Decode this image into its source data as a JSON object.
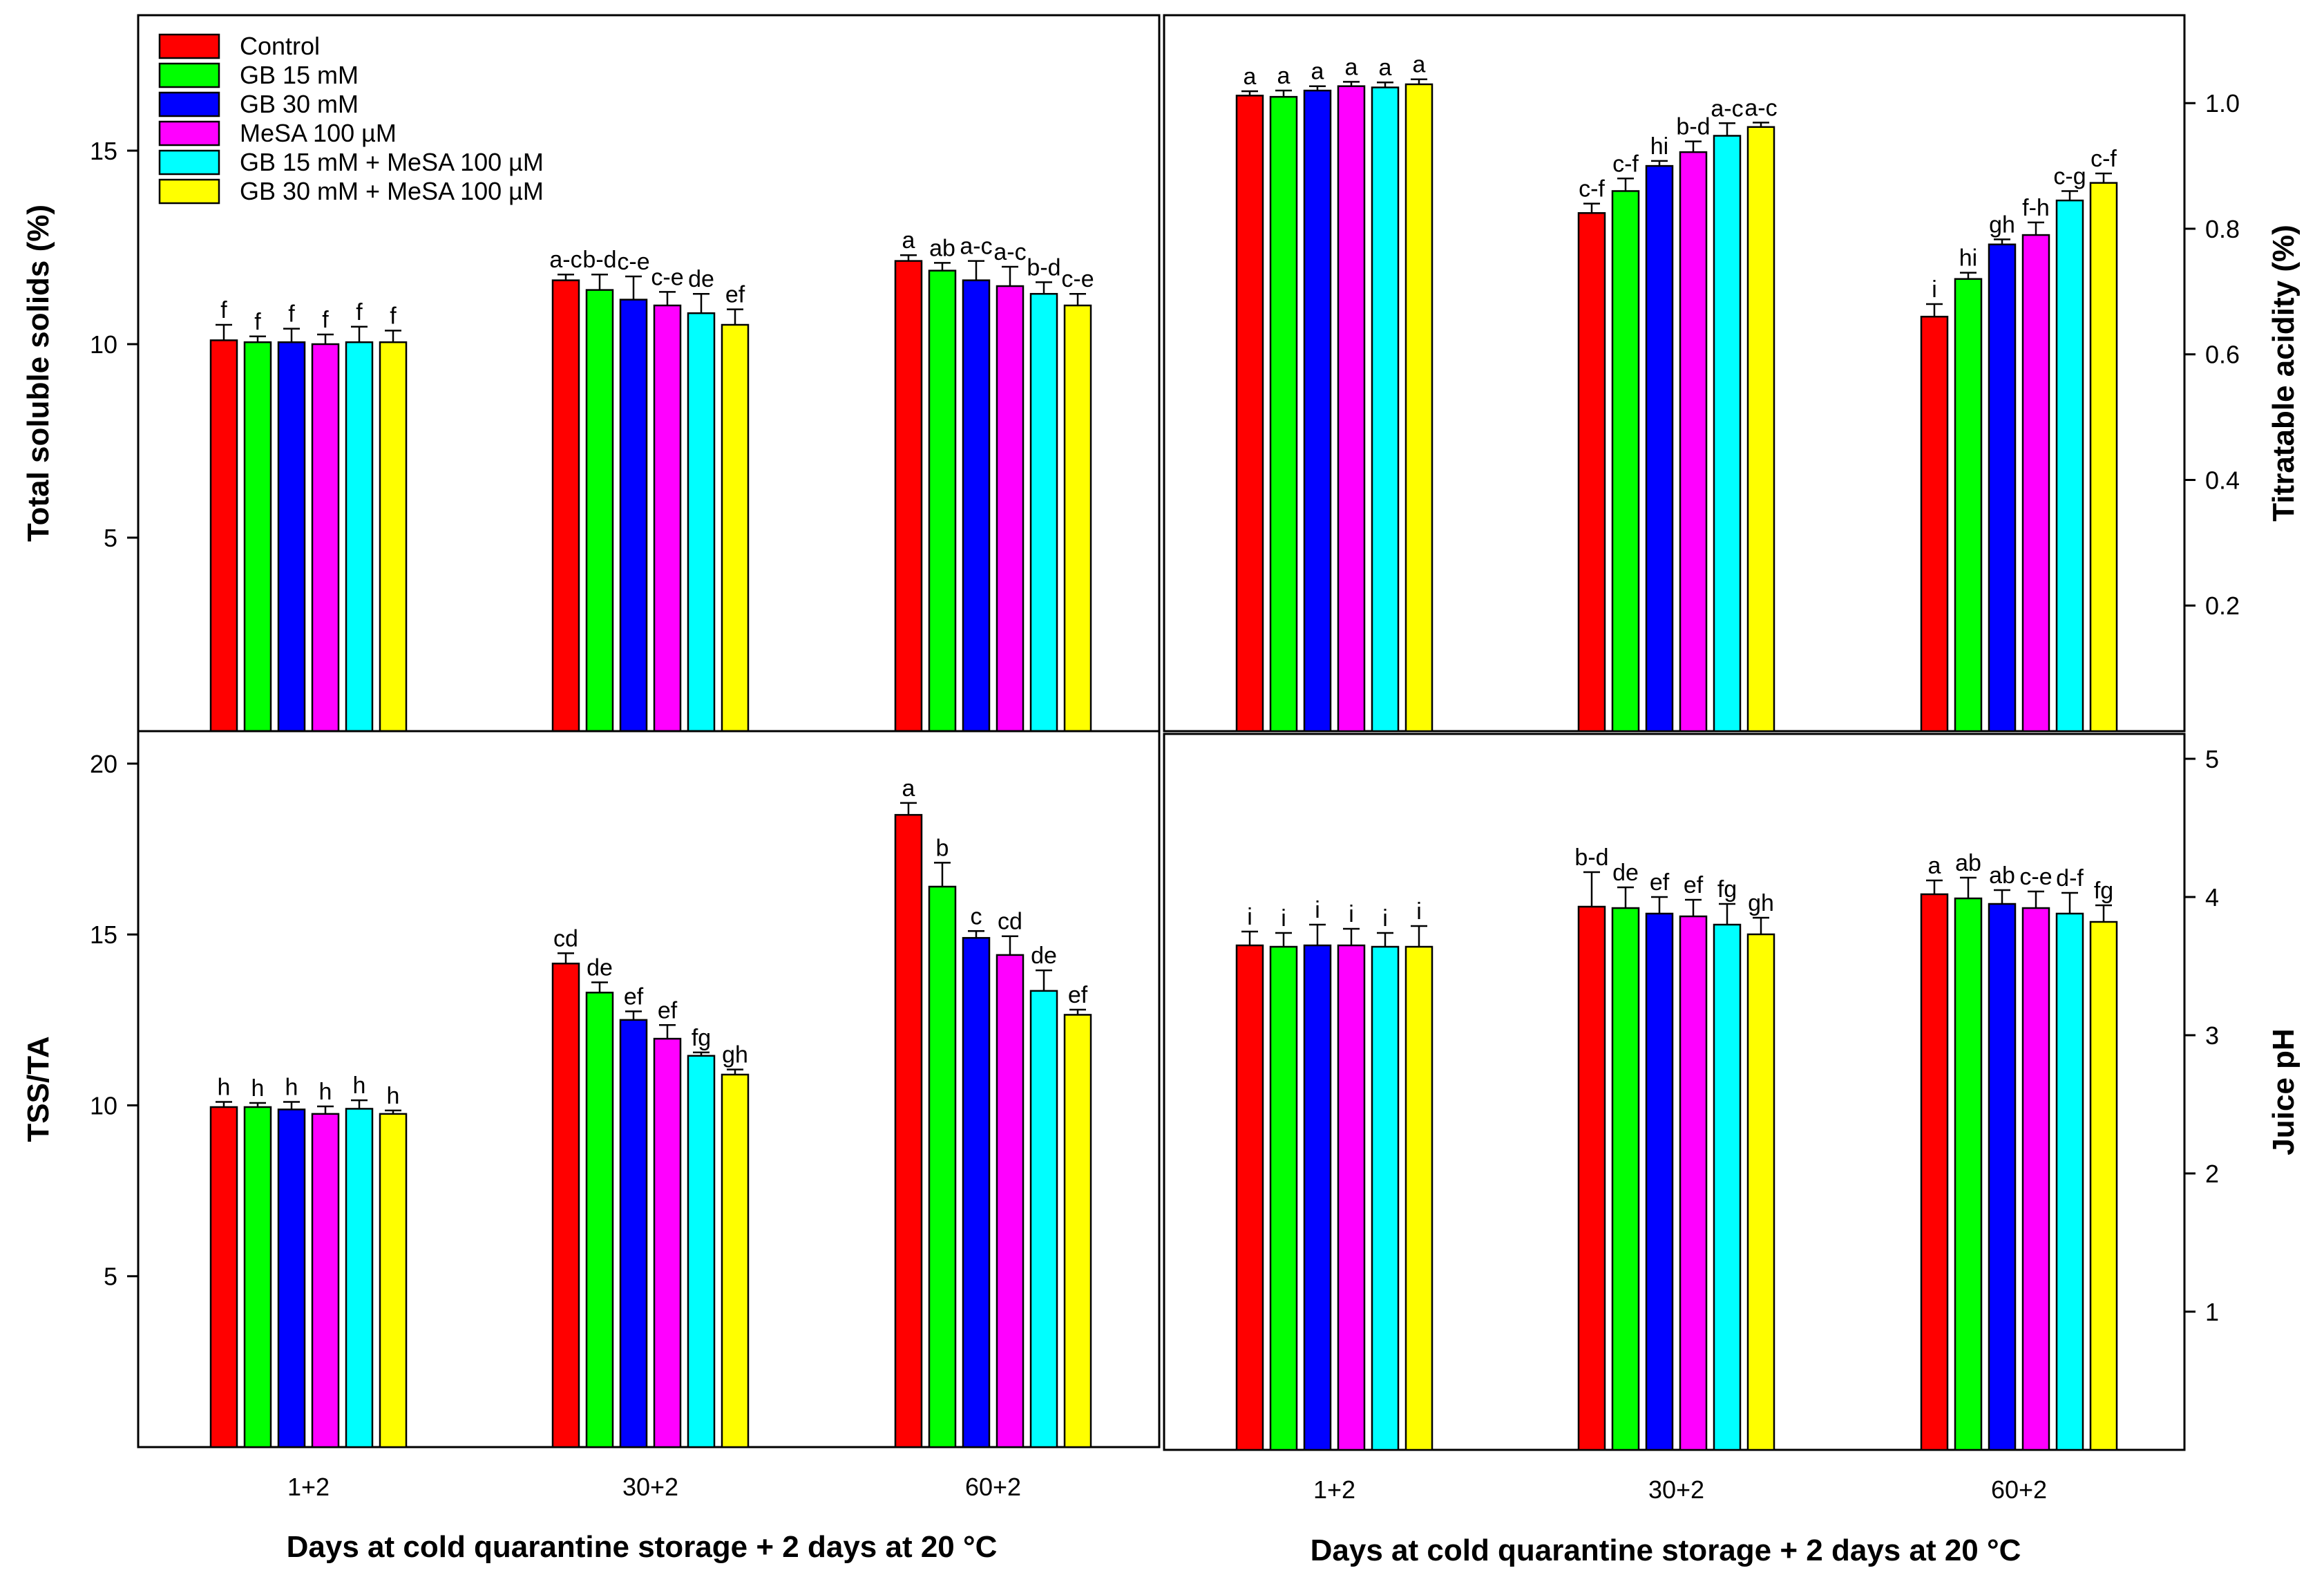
{
  "legend": [
    {
      "label": "Control",
      "color": "#ff0000"
    },
    {
      "label": "GB 15 mM",
      "color": "#00ff00"
    },
    {
      "label": "GB 30 mM",
      "color": "#0000ff"
    },
    {
      "label": "MeSA 100 µM",
      "color": "#ff00ff"
    },
    {
      "label": "GB 15 mM + MeSA 100 µM",
      "color": "#00ffff"
    },
    {
      "label": "GB 30 mM + MeSA 100 µM",
      "color": "#ffff00"
    }
  ],
  "xlabel": "Days at cold quarantine storage + 2 days at 20 °C",
  "chart_data": [
    {
      "type": "bar",
      "panel": "top-left",
      "ylabel": "Total soluble solids  (%)",
      "ylim": [
        0,
        18.5
      ],
      "yticks": [
        5,
        10,
        15
      ],
      "categories": [
        "1+2",
        "30+2",
        "60+2"
      ],
      "series": [
        {
          "name": "Control",
          "values": [
            10.1,
            11.65,
            12.15
          ],
          "errors": [
            0.4,
            0.15,
            0.15
          ],
          "letters": [
            "f",
            "a-c",
            "a"
          ]
        },
        {
          "name": "GB 15 mM",
          "values": [
            10.05,
            11.4,
            11.9
          ],
          "errors": [
            0.15,
            0.4,
            0.2
          ],
          "letters": [
            "f",
            "b-d",
            "ab"
          ]
        },
        {
          "name": "GB 30 mM",
          "values": [
            10.05,
            11.15,
            11.65
          ],
          "errors": [
            0.35,
            0.6,
            0.5
          ],
          "letters": [
            "f",
            "c-e",
            "a-c"
          ]
        },
        {
          "name": "MeSA 100 µM",
          "values": [
            10.0,
            11.0,
            11.5
          ],
          "errors": [
            0.25,
            0.35,
            0.5
          ],
          "letters": [
            "f",
            "c-e",
            "a-c"
          ]
        },
        {
          "name": "GB 15 mM + MeSA 100 µM",
          "values": [
            10.05,
            10.8,
            11.3
          ],
          "errors": [
            0.4,
            0.5,
            0.3
          ],
          "letters": [
            "f",
            "de",
            "b-d"
          ]
        },
        {
          "name": "GB 30 mM + MeSA 100 µM",
          "values": [
            10.05,
            10.5,
            11.0
          ],
          "errors": [
            0.3,
            0.4,
            0.3
          ],
          "letters": [
            "f",
            "ef",
            "c-e"
          ]
        }
      ]
    },
    {
      "type": "bar",
      "panel": "top-right",
      "ylabel": "Titratable acidity (%)",
      "ylim": [
        0,
        1.14
      ],
      "yticks": [
        0.2,
        0.4,
        0.6,
        0.8,
        1.0
      ],
      "ytick_labels": [
        "0.2",
        "0.4",
        "0.6",
        "0.8",
        "1.0"
      ],
      "categories": [
        "1+2",
        "30+2",
        "60+2"
      ],
      "series": [
        {
          "name": "Control",
          "values": [
            1.012,
            0.825,
            0.66
          ],
          "errors": [
            0.007,
            0.015,
            0.02
          ],
          "letters": [
            "a",
            "c-f",
            "i"
          ]
        },
        {
          "name": "GB 15 mM",
          "values": [
            1.01,
            0.86,
            0.72
          ],
          "errors": [
            0.01,
            0.02,
            0.01
          ],
          "letters": [
            "a",
            "c-f",
            "hi"
          ]
        },
        {
          "name": "GB 30 mM",
          "values": [
            1.02,
            0.9,
            0.775
          ],
          "errors": [
            0.007,
            0.008,
            0.008
          ],
          "letters": [
            "a",
            "hi",
            "gh"
          ]
        },
        {
          "name": "MeSA 100 µM",
          "values": [
            1.027,
            0.922,
            0.79
          ],
          "errors": [
            0.007,
            0.017,
            0.02
          ],
          "letters": [
            "a",
            "b-d",
            "f-h"
          ]
        },
        {
          "name": "GB 15 mM + MeSA 100 µM",
          "values": [
            1.025,
            0.948,
            0.845
          ],
          "errors": [
            0.008,
            0.02,
            0.015
          ],
          "letters": [
            "a",
            "a-c",
            "c-g"
          ]
        },
        {
          "name": "GB 30 mM + MeSA 100 µM",
          "values": [
            1.03,
            0.962,
            0.873
          ],
          "errors": [
            0.008,
            0.007,
            0.015
          ],
          "letters": [
            "a",
            "a-c",
            "c-f"
          ]
        }
      ]
    },
    {
      "type": "bar",
      "panel": "bottom-left",
      "ylabel": "TSS/TA",
      "ylim": [
        0,
        20.95
      ],
      "yticks": [
        5,
        10,
        15,
        20
      ],
      "categories": [
        "1+2",
        "30+2",
        "60+2"
      ],
      "series": [
        {
          "name": "Control",
          "values": [
            9.95,
            14.15,
            18.5
          ],
          "errors": [
            0.15,
            0.3,
            0.35
          ],
          "letters": [
            "h",
            "cd",
            "a"
          ]
        },
        {
          "name": "GB 15 mM",
          "values": [
            9.95,
            13.3,
            16.4
          ],
          "errors": [
            0.12,
            0.3,
            0.7
          ],
          "letters": [
            "h",
            "de",
            "b"
          ]
        },
        {
          "name": "GB 30 mM",
          "values": [
            9.88,
            12.5,
            14.9
          ],
          "errors": [
            0.22,
            0.25,
            0.2
          ],
          "letters": [
            "h",
            "ef",
            "c"
          ]
        },
        {
          "name": "MeSA 100 µM",
          "values": [
            9.75,
            11.95,
            14.4
          ],
          "errors": [
            0.22,
            0.4,
            0.55
          ],
          "letters": [
            "h",
            "ef",
            "cd"
          ]
        },
        {
          "name": "GB 15 mM + MeSA 100 µM",
          "values": [
            9.9,
            11.45,
            13.35
          ],
          "errors": [
            0.25,
            0.1,
            0.6
          ],
          "letters": [
            "h",
            "fg",
            "de"
          ]
        },
        {
          "name": "GB 30 mM + MeSA 100 µM",
          "values": [
            9.75,
            10.9,
            12.65
          ],
          "errors": [
            0.1,
            0.15,
            0.15
          ],
          "letters": [
            "h",
            "gh",
            "ef"
          ]
        }
      ]
    },
    {
      "type": "bar",
      "panel": "bottom-right",
      "ylabel": "Juice pH",
      "ylim": [
        0,
        5.18
      ],
      "yticks": [
        1,
        2,
        3,
        4,
        5
      ],
      "categories": [
        "1+2",
        "30+2",
        "60+2"
      ],
      "series": [
        {
          "name": "Control",
          "values": [
            3.65,
            3.93,
            4.02
          ],
          "errors": [
            0.1,
            0.25,
            0.1
          ],
          "letters": [
            "i",
            "b-d",
            "a"
          ]
        },
        {
          "name": "GB 15 mM",
          "values": [
            3.64,
            3.92,
            3.99
          ],
          "errors": [
            0.1,
            0.15,
            0.15
          ],
          "letters": [
            "i",
            "de",
            "ab"
          ]
        },
        {
          "name": "GB 30 mM",
          "values": [
            3.65,
            3.88,
            3.95
          ],
          "errors": [
            0.15,
            0.12,
            0.1
          ],
          "letters": [
            "i",
            "ef",
            "ab"
          ]
        },
        {
          "name": "MeSA 100 µM",
          "values": [
            3.65,
            3.86,
            3.92
          ],
          "errors": [
            0.12,
            0.12,
            0.12
          ],
          "letters": [
            "i",
            "ef",
            "c-e"
          ]
        },
        {
          "name": "GB 15 mM + MeSA 100 µM",
          "values": [
            3.64,
            3.8,
            3.88
          ],
          "errors": [
            0.1,
            0.15,
            0.15
          ],
          "letters": [
            "i",
            "fg",
            "d-f"
          ]
        },
        {
          "name": "GB 30 mM + MeSA 100 µM",
          "values": [
            3.64,
            3.73,
            3.82
          ],
          "errors": [
            0.15,
            0.12,
            0.12
          ],
          "letters": [
            "i",
            "gh",
            "fg"
          ]
        }
      ]
    }
  ]
}
